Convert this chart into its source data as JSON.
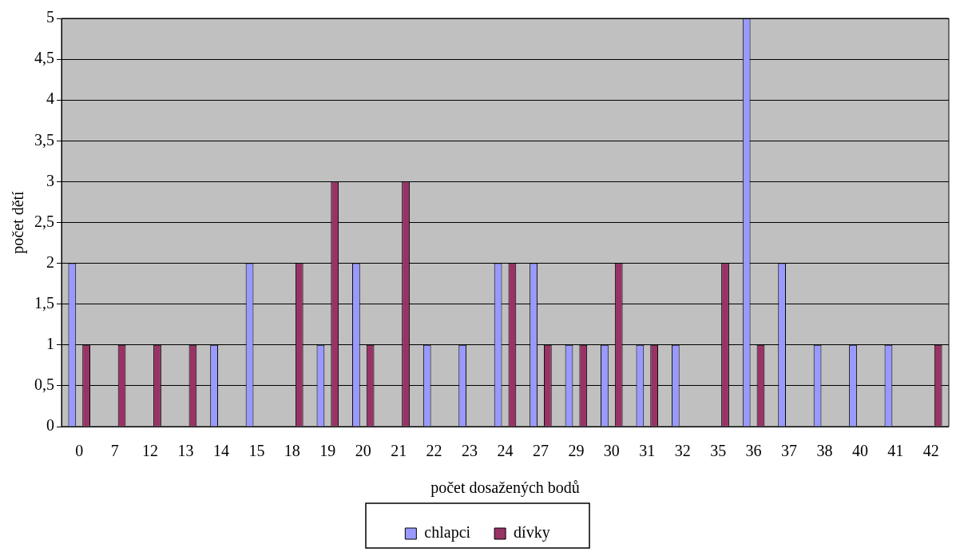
{
  "chart_data": {
    "type": "bar",
    "xlabel": "počet dosažených bodů",
    "ylabel": "počet dětí",
    "categories": [
      "0",
      "7",
      "12",
      "13",
      "14",
      "15",
      "18",
      "19",
      "20",
      "21",
      "22",
      "23",
      "24",
      "27",
      "29",
      "30",
      "31",
      "32",
      "35",
      "36",
      "37",
      "38",
      "40",
      "41",
      "42"
    ],
    "series": [
      {
        "name": "chlapci",
        "color": "#9999ff",
        "values": [
          2,
          0,
          0,
          0,
          1,
          2,
          0,
          1,
          2,
          0,
          1,
          1,
          2,
          2,
          1,
          1,
          1,
          1,
          0,
          5,
          2,
          1,
          1,
          1,
          0
        ]
      },
      {
        "name": "dívky",
        "color": "#993366",
        "values": [
          1,
          1,
          1,
          1,
          0,
          0,
          2,
          3,
          1,
          3,
          0,
          0,
          2,
          1,
          1,
          2,
          1,
          0,
          2,
          1,
          0,
          0,
          0,
          0,
          1
        ]
      }
    ],
    "ylim": [
      0,
      5
    ],
    "yticks": [
      0,
      {
        "value": 0.5,
        "label": "0,5"
      },
      1,
      {
        "value": 1.5,
        "label": "1,5"
      },
      2,
      {
        "value": 2.5,
        "label": "2,5"
      },
      3,
      {
        "value": 3.5,
        "label": "3,5"
      },
      4,
      {
        "value": 4.5,
        "label": "4,5"
      },
      5
    ],
    "grid": "y",
    "legend": "bottom"
  }
}
